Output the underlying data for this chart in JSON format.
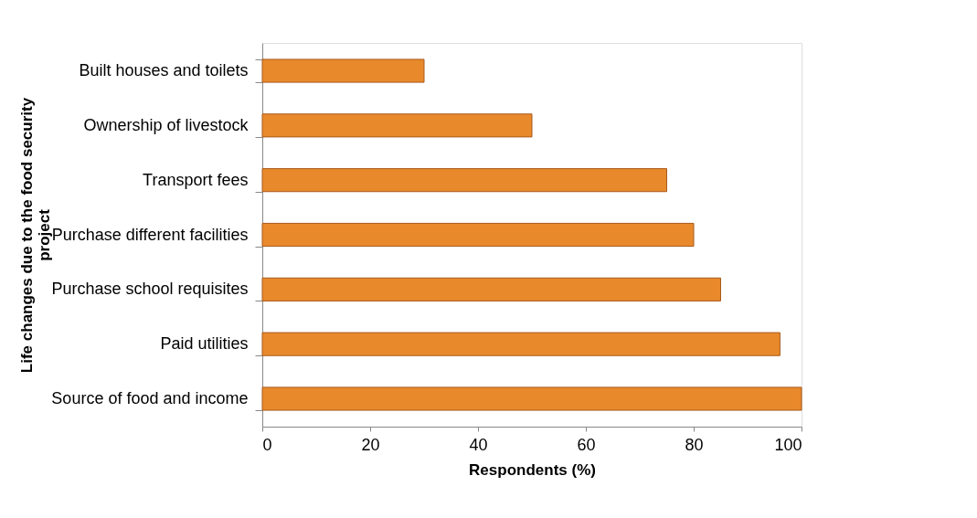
{
  "chart_data": {
    "type": "bar",
    "orientation": "horizontal",
    "categories": [
      "Built houses and toilets",
      "Ownership of livestock",
      "Transport fees",
      "Purchase different facilities",
      "Purchase school requisites",
      "Paid utilities",
      "Source of food and income"
    ],
    "values": [
      30,
      50,
      75,
      80,
      85,
      96,
      100
    ],
    "color": "#e8892c",
    "xlim": [
      0,
      100
    ],
    "xticks": [
      0,
      20,
      40,
      60,
      80,
      100
    ],
    "xlabel": "Respondents (%)",
    "ylabel": "Life changes  due to the food security project",
    "grid": false
  }
}
